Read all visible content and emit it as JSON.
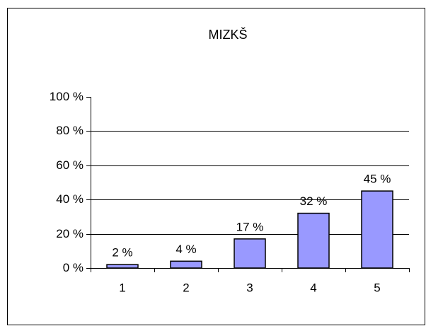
{
  "chart_data": {
    "type": "bar",
    "title": "MIZKŠ",
    "categories": [
      "1",
      "2",
      "3",
      "4",
      "5"
    ],
    "values": [
      2,
      4,
      17,
      32,
      45
    ],
    "value_labels": [
      "2 %",
      "4 %",
      "17 %",
      "32 %",
      "45 %"
    ],
    "color": "#9999ff",
    "ylim": [
      0,
      100
    ],
    "yticks": [
      {
        "value": 0,
        "label": "0 %"
      },
      {
        "value": 20,
        "label": "20 %"
      },
      {
        "value": 40,
        "label": "40 %"
      },
      {
        "value": 60,
        "label": "60 %"
      },
      {
        "value": 80,
        "label": "80 %"
      },
      {
        "value": 100,
        "label": "100 %"
      }
    ],
    "grid": true
  }
}
